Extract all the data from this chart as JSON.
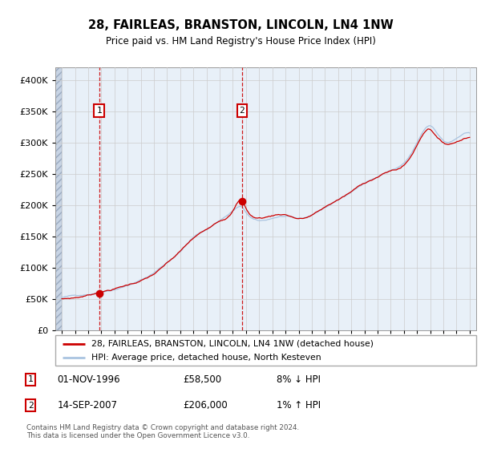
{
  "title": "28, FAIRLEAS, BRANSTON, LINCOLN, LN4 1NW",
  "subtitle": "Price paid vs. HM Land Registry's House Price Index (HPI)",
  "hpi_label": "HPI: Average price, detached house, North Kesteven",
  "property_label": "28, FAIRLEAS, BRANSTON, LINCOLN, LN4 1NW (detached house)",
  "footnote": "Contains HM Land Registry data © Crown copyright and database right 2024.\nThis data is licensed under the Open Government Licence v3.0.",
  "sale1_date": "01-NOV-1996",
  "sale1_price": "£58,500",
  "sale1_hpi": "8% ↓ HPI",
  "sale2_date": "14-SEP-2007",
  "sale2_price": "£206,000",
  "sale2_hpi": "1% ↑ HPI",
  "sale1_year": 1996.83,
  "sale1_value": 58500,
  "sale2_year": 2007.7,
  "sale2_value": 206000,
  "hpi_color": "#aac4e0",
  "price_color": "#cc0000",
  "chart_bg": "#e8f0f8",
  "grid_color": "#cccccc",
  "ylim": [
    0,
    420000
  ],
  "xlim_start": 1993.5,
  "xlim_end": 2025.5
}
